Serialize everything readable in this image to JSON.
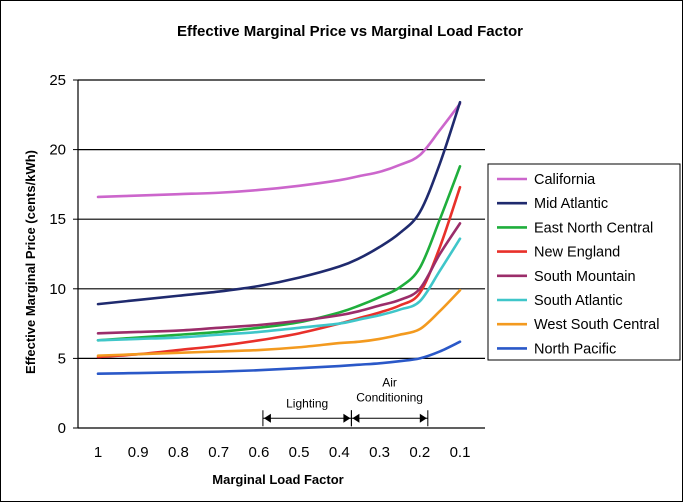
{
  "chart_data": {
    "type": "line",
    "title": "Effective Marginal Price vs Marginal Load Factor",
    "xlabel": "Marginal Load Factor",
    "ylabel": "Effective Marginal Price (cents/kWh)",
    "x_reversed": true,
    "xlim": [
      1,
      0.1
    ],
    "ylim": [
      0,
      25
    ],
    "x_ticks": [
      "1",
      "0.9",
      "0.8",
      "0.7",
      "0.6",
      "0.5",
      "0.4",
      "0.3",
      "0.2",
      "0.1"
    ],
    "x_tick_values": [
      1,
      0.9,
      0.8,
      0.7,
      0.6,
      0.5,
      0.4,
      0.3,
      0.2,
      0.1
    ],
    "y_ticks": [
      "0",
      "5",
      "10",
      "15",
      "20",
      "25"
    ],
    "y_tick_values": [
      0,
      5,
      10,
      15,
      20,
      25
    ],
    "grid": "horizontal",
    "legend_position": "right",
    "x": [
      1,
      0.9,
      0.8,
      0.7,
      0.6,
      0.5,
      0.4,
      0.35,
      0.3,
      0.25,
      0.2,
      0.15,
      0.1
    ],
    "series": [
      {
        "name": "California",
        "color": "#cc66cc",
        "values": [
          16.6,
          16.7,
          16.8,
          16.9,
          17.1,
          17.4,
          17.8,
          18.1,
          18.4,
          18.9,
          19.6,
          21.4,
          23.3
        ]
      },
      {
        "name": "Mid Atlantic",
        "color": "#1f2a6e",
        "values": [
          8.9,
          9.2,
          9.5,
          9.8,
          10.2,
          10.8,
          11.6,
          12.2,
          13.0,
          14.0,
          15.5,
          19.0,
          23.4
        ]
      },
      {
        "name": "East North Central",
        "color": "#1fae3c",
        "values": [
          6.3,
          6.5,
          6.7,
          6.9,
          7.2,
          7.6,
          8.3,
          8.8,
          9.4,
          10.1,
          11.5,
          15.0,
          18.8
        ]
      },
      {
        "name": "New England",
        "color": "#e8302a",
        "values": [
          5.1,
          5.3,
          5.6,
          5.9,
          6.3,
          6.8,
          7.5,
          7.9,
          8.3,
          8.8,
          9.7,
          13.0,
          17.3
        ]
      },
      {
        "name": "South Mountain",
        "color": "#9b2d6a",
        "values": [
          6.8,
          6.9,
          7.0,
          7.2,
          7.4,
          7.7,
          8.1,
          8.4,
          8.8,
          9.2,
          10.0,
          12.5,
          14.7
        ]
      },
      {
        "name": "South Atlantic",
        "color": "#3fc6c9",
        "values": [
          6.3,
          6.4,
          6.5,
          6.7,
          6.9,
          7.2,
          7.5,
          7.8,
          8.1,
          8.5,
          9.1,
          11.3,
          13.6
        ]
      },
      {
        "name": "West South Central",
        "color": "#f39a1f",
        "values": [
          5.2,
          5.3,
          5.4,
          5.5,
          5.6,
          5.8,
          6.1,
          6.2,
          6.4,
          6.7,
          7.1,
          8.4,
          9.9
        ]
      },
      {
        "name": "North Pacific",
        "color": "#2a58c8",
        "values": [
          3.9,
          3.95,
          4.0,
          4.05,
          4.15,
          4.3,
          4.45,
          4.55,
          4.65,
          4.8,
          5.0,
          5.5,
          6.2
        ]
      }
    ],
    "annotations": [
      {
        "text": "Lighting",
        "x_from": 0.59,
        "x_to": 0.37,
        "y": 0.7
      },
      {
        "text": "Air Conditioning",
        "x_from": 0.37,
        "x_to": 0.18,
        "y": 0.7
      }
    ]
  }
}
